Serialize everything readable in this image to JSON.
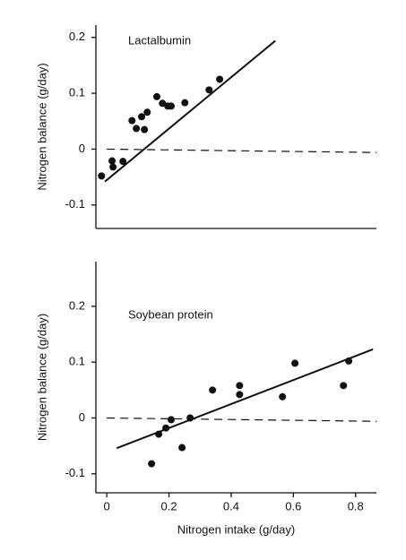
{
  "chart_data": [
    {
      "type": "scatter",
      "annotation": "Lactalbumin",
      "ylabel": "Nitrogen balance (g/day)",
      "color": "#111",
      "x": [
        -0.017,
        0.017,
        0.02,
        0.052,
        0.081,
        0.095,
        0.112,
        0.121,
        0.13,
        0.161,
        0.179,
        0.196,
        0.207,
        0.251,
        0.329,
        0.363
      ],
      "y": [
        -0.048,
        -0.021,
        -0.032,
        -0.022,
        0.051,
        0.037,
        0.058,
        0.035,
        0.066,
        0.094,
        0.082,
        0.077,
        0.077,
        0.083,
        0.106,
        0.125
      ],
      "lines": [
        {
          "x": [
            -0.006,
            0.542
          ],
          "y": [
            -0.058,
            0.194
          ],
          "dashed": false
        },
        {
          "x": [
            0,
            0.868
          ],
          "y": [
            0,
            -0.006
          ],
          "dashed": true
        }
      ],
      "xlim": [
        -0.035,
        0.867
      ],
      "ylim": [
        -0.142,
        0.222
      ],
      "yticks": [
        0.2,
        0.1,
        0,
        -0.1
      ]
    },
    {
      "type": "scatter",
      "annotation": "Soybean protein",
      "ylabel": "Nitrogen balance (g/day)",
      "xlabel": "Nitrogen intake (g/day)",
      "color": "#111",
      "x": [
        0.144,
        0.167,
        0.19,
        0.207,
        0.242,
        0.268,
        0.34,
        0.427,
        0.427,
        0.565,
        0.605,
        0.761,
        0.778
      ],
      "y": [
        -0.082,
        -0.029,
        -0.018,
        -0.003,
        -0.053,
        0.0,
        0.05,
        0.058,
        0.042,
        0.038,
        0.098,
        0.058,
        0.102
      ],
      "lines": [
        {
          "x": [
            0.032,
            0.856
          ],
          "y": [
            -0.054,
            0.123
          ],
          "dashed": false
        },
        {
          "x": [
            0,
            0.868
          ],
          "y": [
            0,
            -0.006
          ],
          "dashed": true
        }
      ],
      "xlim": [
        -0.035,
        0.867
      ],
      "ylim": [
        -0.134,
        0.28
      ],
      "yticks": [
        0.2,
        0.1,
        0,
        -0.1
      ],
      "xticks": [
        0,
        0.2,
        0.4,
        0.6,
        0.8
      ]
    }
  ]
}
